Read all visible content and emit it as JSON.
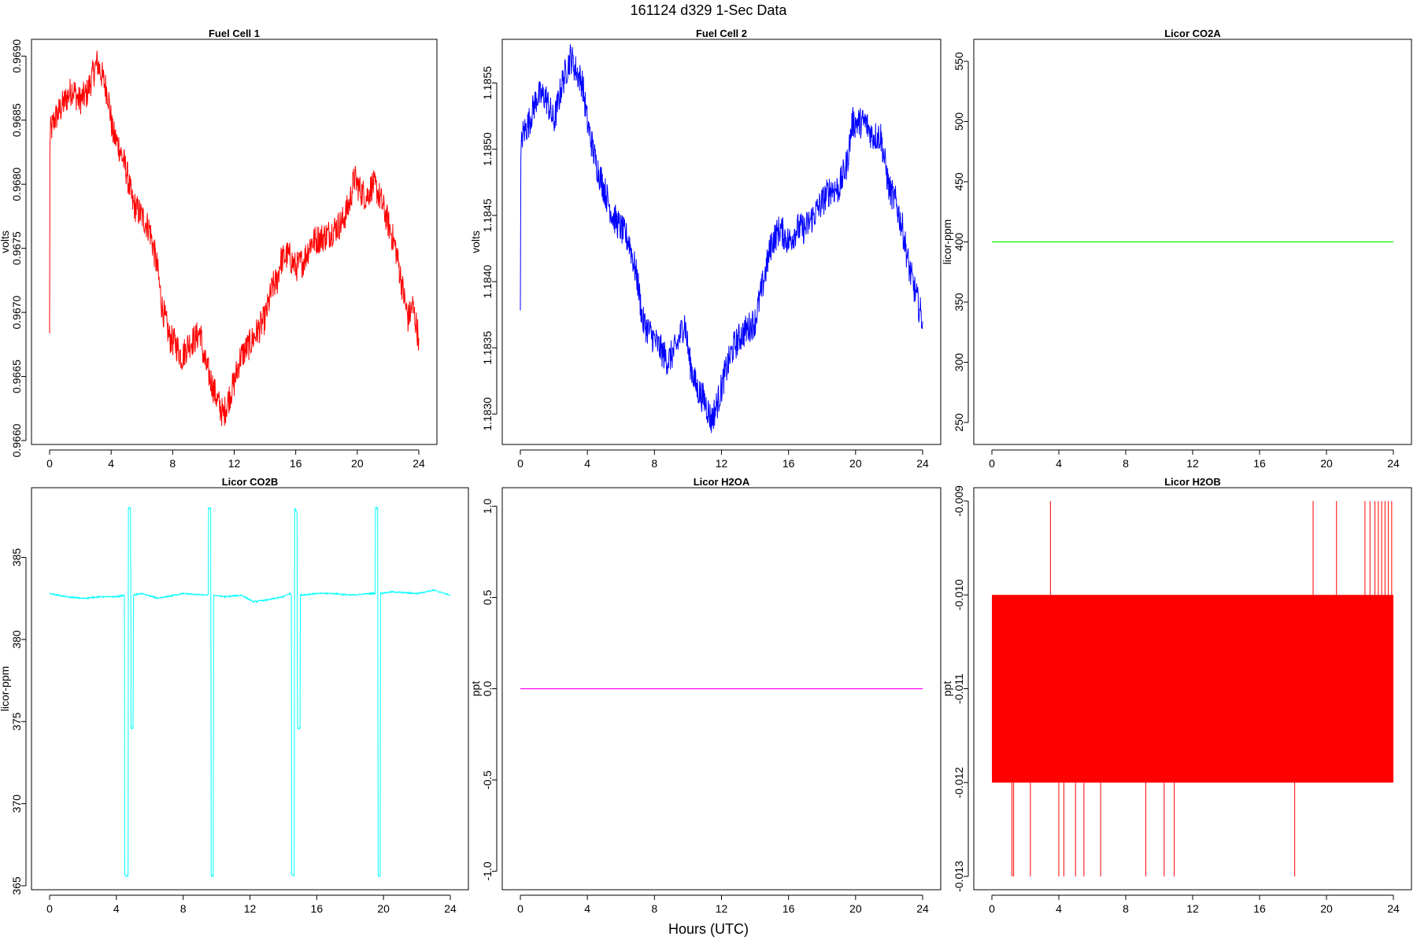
{
  "figure": {
    "title": "161124   d329   1-Sec Data",
    "xlabel": "Hours (UTC)"
  },
  "chart_data": [
    {
      "type": "line",
      "title": "Fuel Cell 1",
      "ylabel": "volts",
      "xlim": [
        0,
        24
      ],
      "ylim": [
        0.966,
        0.9691
      ],
      "xticks": [
        0,
        4,
        8,
        12,
        16,
        20,
        24
      ],
      "yticks": [
        "0.9660",
        "0.9665",
        "0.9670",
        "0.9675",
        "0.9680",
        "0.9685",
        "0.9690"
      ],
      "color": "#ff0000",
      "noise": 0.00012,
      "series": [
        {
          "x": [
            0,
            0.02,
            0.05,
            0.3,
            1,
            1.5,
            1.9,
            2.4,
            2.8,
            3.1,
            3.4,
            3.8,
            4.1,
            4.5,
            5,
            5.4,
            6,
            6.5,
            7,
            7.3,
            7.8,
            8.2,
            8.6,
            9,
            9.5,
            9.8,
            10,
            10.4,
            10.8,
            11.1,
            11.3,
            11.7,
            12,
            12.4,
            13,
            13.5,
            14,
            14.5,
            14.8,
            15,
            15.5,
            16,
            16.5,
            17,
            18,
            19,
            19.5,
            19.8,
            20.2,
            20.6,
            21,
            21.3,
            21.6,
            22,
            22.5,
            23,
            23.3,
            23.6,
            24
          ],
          "y": [
            0.9668,
            0.9683,
            0.9684,
            0.9685,
            0.96865,
            0.96875,
            0.96865,
            0.9687,
            0.96885,
            0.96895,
            0.96885,
            0.9687,
            0.9684,
            0.9683,
            0.9681,
            0.96785,
            0.96775,
            0.96765,
            0.96735,
            0.96705,
            0.9668,
            0.96675,
            0.96665,
            0.96675,
            0.9668,
            0.96685,
            0.96665,
            0.9665,
            0.96635,
            0.96625,
            0.9662,
            0.96635,
            0.96645,
            0.96665,
            0.96675,
            0.96685,
            0.96695,
            0.9672,
            0.96725,
            0.9674,
            0.96745,
            0.96735,
            0.9674,
            0.96755,
            0.9676,
            0.9677,
            0.96785,
            0.96805,
            0.96795,
            0.9679,
            0.968,
            0.96795,
            0.96785,
            0.9677,
            0.9675,
            0.96715,
            0.96695,
            0.96705,
            0.9668
          ]
        }
      ]
    },
    {
      "type": "line",
      "title": "Fuel Cell 2",
      "ylabel": "volts",
      "xlim": [
        0,
        24
      ],
      "ylim": [
        1.1828,
        1.1858
      ],
      "xticks": [
        0,
        4,
        8,
        12,
        16,
        20,
        24
      ],
      "yticks": [
        "1.1830",
        "1.1835",
        "1.1840",
        "1.1845",
        "1.1850",
        "1.1855"
      ],
      "color": "#0000ff",
      "noise": 0.00012,
      "series": [
        {
          "x": [
            0,
            0.03,
            0.1,
            0.5,
            1,
            1.5,
            2,
            2.5,
            3,
            3.3,
            3.7,
            4,
            4.5,
            5,
            5.5,
            6,
            6.5,
            7,
            7.3,
            7.8,
            8.3,
            8.8,
            9.3,
            9.8,
            10.1,
            10.5,
            11,
            11.4,
            11.8,
            12.2,
            12.7,
            13.2,
            14,
            14.5,
            15,
            15.5,
            16,
            16.5,
            17,
            17.5,
            18,
            18.5,
            19,
            19.5,
            19.8,
            20.2,
            20.6,
            21,
            21.5,
            22,
            22.4,
            22.8,
            23.2,
            23.6,
            23.8,
            24
          ],
          "y": [
            1.1837,
            1.1849,
            1.1851,
            1.1852,
            1.1854,
            1.1854,
            1.1852,
            1.1855,
            1.1857,
            1.1856,
            1.1855,
            1.1852,
            1.1849,
            1.1847,
            1.1845,
            1.1844,
            1.1843,
            1.184,
            1.1837,
            1.1836,
            1.1835,
            1.1834,
            1.1835,
            1.1837,
            1.1834,
            1.1832,
            1.1831,
            1.18295,
            1.1831,
            1.1833,
            1.1835,
            1.1836,
            1.1837,
            1.184,
            1.1843,
            1.1844,
            1.1843,
            1.1844,
            1.1844,
            1.1845,
            1.1846,
            1.1847,
            1.1847,
            1.1849,
            1.1852,
            1.1852,
            1.1852,
            1.1851,
            1.1851,
            1.1847,
            1.1846,
            1.1844,
            1.1841,
            1.1839,
            1.1838,
            1.1837
          ]
        }
      ]
    },
    {
      "type": "line",
      "title": "Licor CO2A",
      "ylabel": "licor-ppm",
      "xlim": [
        0,
        24
      ],
      "ylim": [
        235,
        565
      ],
      "xticks": [
        0,
        4,
        8,
        12,
        16,
        20,
        24
      ],
      "yticks": [
        "250",
        "300",
        "350",
        "400",
        "450",
        "500",
        "550"
      ],
      "color": "#00ff00",
      "noise": 0,
      "series": [
        {
          "x": [
            0,
            24
          ],
          "y": [
            400,
            400
          ]
        }
      ]
    },
    {
      "type": "line",
      "title": "Licor CO2B",
      "ylabel": "licor-ppm",
      "xlim": [
        0,
        24
      ],
      "ylim": [
        365,
        389
      ],
      "xticks": [
        0,
        4,
        8,
        12,
        16,
        20,
        24
      ],
      "yticks": [
        "365",
        "370",
        "375",
        "380",
        "385"
      ],
      "color": "#00ffff",
      "noise": 0.04,
      "series": [
        {
          "x": [
            0,
            1,
            2,
            3,
            4,
            4.48,
            4.5,
            4.55,
            4.7,
            4.72,
            4.85,
            4.88,
            5.0,
            5.02,
            5.5,
            6.5,
            8,
            9.3,
            9.5,
            9.52,
            9.65,
            9.68,
            9.8,
            9.82,
            10.5,
            11.5,
            12.2,
            13,
            14,
            14.4,
            14.48,
            14.5,
            14.65,
            14.68,
            14.82,
            14.85,
            15.0,
            15.02,
            16,
            17,
            18,
            19.3,
            19.5,
            19.52,
            19.65,
            19.68,
            19.8,
            19.82,
            20.5,
            22,
            23,
            24
          ],
          "y": [
            382.8,
            382.6,
            382.5,
            382.6,
            382.6,
            382.7,
            365.7,
            365.6,
            365.6,
            388.0,
            388.0,
            374.6,
            374.6,
            382.7,
            382.8,
            382.5,
            382.8,
            382.7,
            382.7,
            388.0,
            388.0,
            365.6,
            365.6,
            382.7,
            382.6,
            382.7,
            382.3,
            382.4,
            382.6,
            382.8,
            382.7,
            365.7,
            365.6,
            388.0,
            387.7,
            374.6,
            374.6,
            382.7,
            382.8,
            382.8,
            382.7,
            382.8,
            382.8,
            388.0,
            388.0,
            365.6,
            365.6,
            382.8,
            382.9,
            382.8,
            383.0,
            382.7
          ]
        }
      ]
    },
    {
      "type": "line",
      "title": "Licor H2OA",
      "ylabel": "ppt",
      "xlim": [
        0,
        24
      ],
      "ylim": [
        -1.08,
        1.08
      ],
      "xticks": [
        0,
        4,
        8,
        12,
        16,
        20,
        24
      ],
      "yticks": [
        "-1.0",
        "-0.5",
        "0.0",
        "0.5",
        "1.0"
      ],
      "color": "#ff00ff",
      "noise": 0,
      "series": [
        {
          "x": [
            0,
            24
          ],
          "y": [
            0,
            0
          ]
        }
      ]
    },
    {
      "type": "line",
      "title": "Licor H2OB",
      "ylabel": "ppt",
      "xlim": [
        0,
        24
      ],
      "ylim": [
        -0.0131,
        -0.0089
      ],
      "xticks": [
        0,
        4,
        8,
        12,
        16,
        20,
        24
      ],
      "yticks": [
        "-0.013",
        "-0.012",
        "-0.011",
        "-0.010",
        "-0.009"
      ],
      "color": "#ff0000",
      "noise": 0,
      "band": {
        "from": -0.012,
        "to": -0.01,
        "x0": 0,
        "x1": 24
      },
      "spikes_up": [
        3.5,
        19.2,
        20.6,
        22.3,
        22.6,
        22.9,
        23.1,
        23.3,
        23.5,
        23.7,
        23.9
      ],
      "spikes_down": [
        1.2,
        1.3,
        2.3,
        4.0,
        4.3,
        5.0,
        5.5,
        6.5,
        9.2,
        10.3,
        10.9,
        18.1
      ]
    }
  ]
}
